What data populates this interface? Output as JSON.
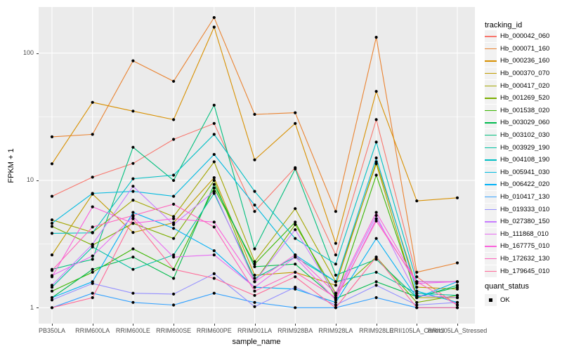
{
  "figure": {
    "background": "#FFFFFF",
    "panel_bg": "#EBEBEB",
    "grid_color": "#FFFFFF",
    "tick_text_color": "#4D4D4D",
    "legend_key_bg": "#F2F2F2"
  },
  "chart_data": {
    "type": "line",
    "title": "",
    "xlabel": "sample_name",
    "ylabel": "FPKM + 1",
    "yscale": "log10",
    "ylim": [
      0.75,
      230
    ],
    "yticks": [
      1,
      10,
      100
    ],
    "yticks_minor": [
      3.162,
      31.62
    ],
    "grid": "on",
    "legend_position": "right",
    "point_color": "#000000",
    "categories": [
      "PB350LA",
      "RRIM600LA",
      "RRIM600LE",
      "RRIM600SE",
      "RRIM600PE",
      "RRIM901LA",
      "RRIM928BA",
      "RRIM928LA",
      "RRIM928LE",
      "RRII105LA_Control",
      "RRII105LA_Stressed"
    ],
    "series": [
      {
        "name": "Hb_000042_060",
        "color": "#F8766D",
        "values": [
          7.5,
          10.6,
          13.6,
          21,
          28,
          5.7,
          12.6,
          2.6,
          30,
          1.75,
          1.05
        ]
      },
      {
        "name": "Hb_000071_160",
        "color": "#EA8331",
        "values": [
          22,
          23,
          87,
          60,
          190,
          33,
          34,
          5.7,
          133,
          1.9,
          2.25
        ]
      },
      {
        "name": "Hb_000236_160",
        "color": "#D89000",
        "values": [
          13.5,
          41,
          35,
          30,
          160,
          14.5,
          28,
          3.2,
          50,
          6.9,
          7.3
        ]
      },
      {
        "name": "Hb_000370_070",
        "color": "#C09B00",
        "values": [
          2.6,
          7.8,
          3.9,
          4.65,
          10.5,
          1.8,
          1.9,
          1.5,
          14,
          1.45,
          1.4
        ]
      },
      {
        "name": "Hb_000417_020",
        "color": "#A3A500",
        "values": [
          4.9,
          3.9,
          7.0,
          5.2,
          14,
          2.3,
          6.0,
          1.6,
          13.5,
          1.2,
          1.2
        ]
      },
      {
        "name": "Hb_001269_520",
        "color": "#7CAE00",
        "values": [
          4.35,
          3.1,
          4.6,
          3.5,
          10.0,
          1.6,
          4.5,
          1.3,
          2.5,
          1.1,
          1.25
        ]
      },
      {
        "name": "Hb_001538_020",
        "color": "#39B600",
        "values": [
          1.35,
          1.9,
          2.9,
          2.0,
          8.7,
          2.2,
          4.7,
          1.2,
          11,
          1.25,
          1.2
        ]
      },
      {
        "name": "Hb_003029_060",
        "color": "#00BB4E",
        "values": [
          1.2,
          2.0,
          2.5,
          1.7,
          9.3,
          2.1,
          2.2,
          1.18,
          1.6,
          1.22,
          1.45
        ]
      },
      {
        "name": "Hb_003102_030",
        "color": "#00BF7D",
        "values": [
          2.0,
          2.4,
          18.2,
          10,
          39,
          2.9,
          12.3,
          1.8,
          2.4,
          1.2,
          1.5
        ]
      },
      {
        "name": "Hb_003929_190",
        "color": "#00C1A3",
        "values": [
          1.45,
          3.0,
          2.0,
          2.6,
          7.9,
          1.7,
          2.5,
          1.6,
          1.9,
          1.3,
          1.25
        ]
      },
      {
        "name": "Hb_004108_190",
        "color": "#00BFC4",
        "values": [
          3.84,
          3.87,
          10.3,
          11,
          23,
          8.2,
          3.5,
          2.2,
          20,
          1.6,
          1.6
        ]
      },
      {
        "name": "Hb_005941_030",
        "color": "#00BAE0",
        "values": [
          4.6,
          7.9,
          8.2,
          7.5,
          16,
          6.4,
          2.6,
          1.6,
          15,
          1.35,
          1.1
        ]
      },
      {
        "name": "Hb_006422_020",
        "color": "#00B0F6",
        "values": [
          1.2,
          1.6,
          5.6,
          4.2,
          2.8,
          1.45,
          1.4,
          1.1,
          3.5,
          1.2,
          1.6
        ]
      },
      {
        "name": "Hb_010417_130",
        "color": "#35A2FF",
        "values": [
          1.0,
          1.3,
          1.1,
          1.05,
          1.3,
          1.1,
          1.0,
          1.0,
          1.2,
          1.0,
          1.0
        ]
      },
      {
        "name": "Hb_019333_010",
        "color": "#9590FF",
        "values": [
          1.15,
          1.55,
          1.3,
          1.28,
          1.85,
          1.02,
          1.45,
          1.05,
          1.5,
          1.05,
          1.1
        ]
      },
      {
        "name": "Hb_027380_150",
        "color": "#C77CFF",
        "values": [
          1.5,
          3.15,
          9.0,
          4.5,
          8.2,
          1.6,
          4.1,
          1.25,
          5.3,
          1.25,
          1.2
        ]
      },
      {
        "name": "Hb_111868_010",
        "color": "#E76BF3",
        "values": [
          1.79,
          2.55,
          5.2,
          2.5,
          2.6,
          1.45,
          2.5,
          1.15,
          5.0,
          1.55,
          1.6
        ]
      },
      {
        "name": "Hb_167775_010",
        "color": "#FA62DB",
        "values": [
          1.75,
          6.2,
          4.6,
          5.0,
          4.7,
          1.6,
          2.6,
          1.3,
          5.6,
          1.6,
          1.6
        ]
      },
      {
        "name": "Hb_172632_130",
        "color": "#FF62BC",
        "values": [
          1.96,
          4.3,
          5.3,
          6.5,
          4.3,
          1.35,
          1.9,
          1.2,
          4.8,
          1.6,
          1.05
        ]
      },
      {
        "name": "Hb_179645_010",
        "color": "#FF6A98",
        "values": [
          1.0,
          1.2,
          5.0,
          2.0,
          1.7,
          1.25,
          1.75,
          1.0,
          2.5,
          1.0,
          1.0
        ]
      }
    ],
    "legend": {
      "title": "tracking_id"
    },
    "quant_legend": {
      "title": "quant_status",
      "items": [
        {
          "label": "OK",
          "symbol": "black-point"
        }
      ]
    }
  }
}
